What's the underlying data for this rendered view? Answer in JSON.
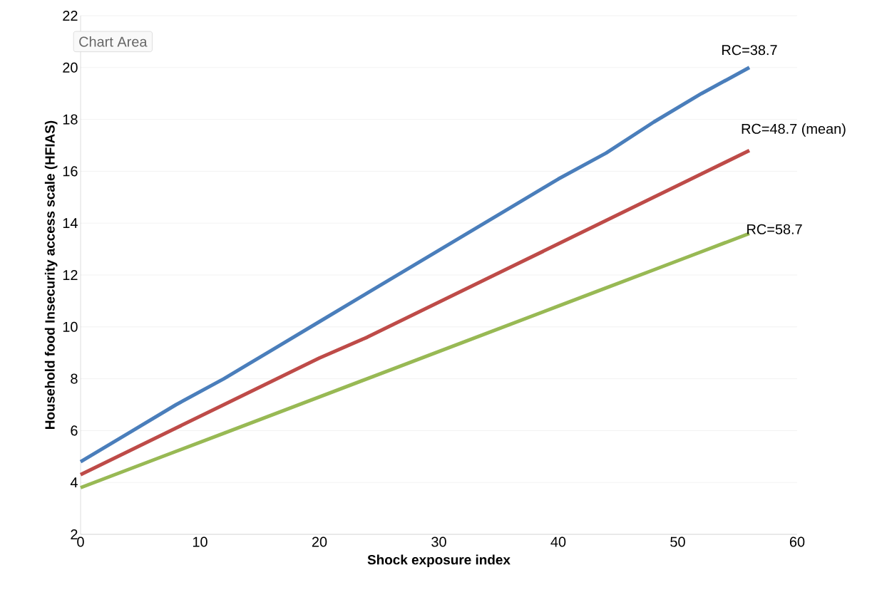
{
  "chart_data": {
    "type": "line",
    "xlabel": "Shock exposure index",
    "ylabel": "Household food Insecurity  access scale  (HFIAS)",
    "x": [
      0,
      4,
      8,
      12,
      16,
      20,
      24,
      28,
      32,
      36,
      40,
      44,
      48,
      52,
      56
    ],
    "xlim": [
      0,
      60
    ],
    "ylim": [
      2,
      22
    ],
    "xticks": [
      0,
      10,
      20,
      30,
      40,
      50,
      60
    ],
    "yticks": [
      2,
      4,
      6,
      8,
      10,
      12,
      14,
      16,
      18,
      20,
      22
    ],
    "grid": "y",
    "marker": "none",
    "line_style": "solid",
    "annotations": [
      "Chart Area"
    ],
    "series": [
      {
        "name": "RC=38.7",
        "color": "#4a7ebb",
        "values": [
          4.8,
          5.9,
          7.0,
          8.0,
          9.1,
          10.2,
          11.3,
          12.4,
          13.5,
          14.6,
          15.7,
          16.7,
          17.9,
          19.0,
          20.0
        ]
      },
      {
        "name": "RC=48.7 (mean)",
        "color": "#be4b48",
        "values": [
          4.3,
          5.2,
          6.1,
          7.0,
          7.9,
          8.8,
          9.6,
          10.5,
          11.4,
          12.3,
          13.2,
          14.1,
          15.0,
          15.9,
          16.8
        ]
      },
      {
        "name": "RC=58.7",
        "color": "#98b954",
        "values": [
          3.8,
          4.5,
          5.2,
          5.9,
          6.6,
          7.3,
          8.0,
          8.7,
          9.4,
          10.1,
          10.8,
          11.5,
          12.2,
          12.9,
          13.6
        ]
      }
    ]
  }
}
